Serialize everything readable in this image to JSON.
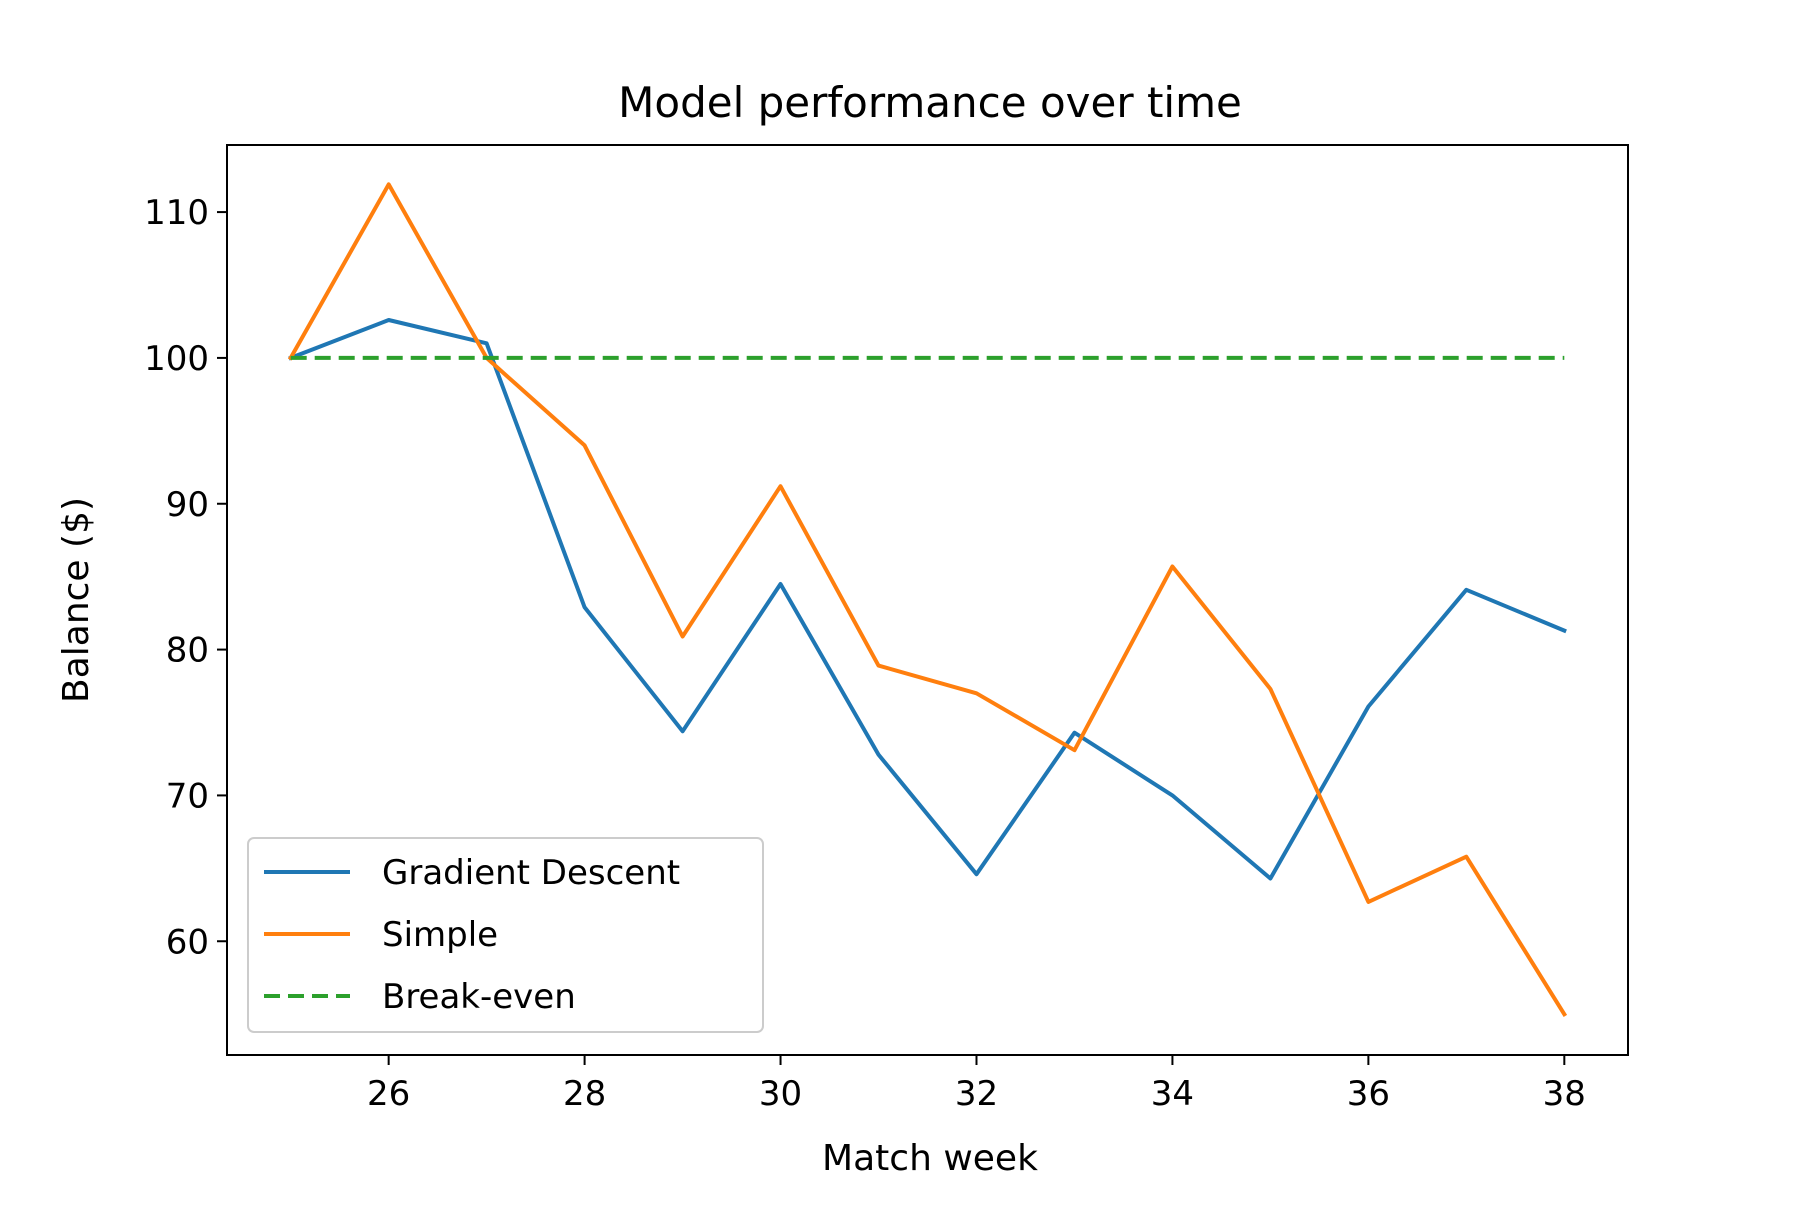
{
  "chart_data": {
    "type": "line",
    "title": "Model performance over time",
    "xlabel": "Match week",
    "ylabel": "Balance ($)",
    "xlim": [
      24.35,
      38.65
    ],
    "ylim": [
      52.2,
      114.6
    ],
    "xticks": [
      26,
      28,
      30,
      32,
      34,
      36,
      38
    ],
    "yticks": [
      60,
      70,
      80,
      90,
      100,
      110
    ],
    "grid": false,
    "legend_position": "lower-left",
    "x": [
      25,
      26,
      27,
      28,
      29,
      30,
      31,
      32,
      33,
      34,
      35,
      36,
      37,
      38
    ],
    "series": [
      {
        "name": "Gradient Descent",
        "color": "#1f77b4",
        "style": "solid",
        "values": [
          100.0,
          102.6,
          101.0,
          82.9,
          74.4,
          84.5,
          72.8,
          64.6,
          74.3,
          70.0,
          64.3,
          76.1,
          84.1,
          81.3
        ]
      },
      {
        "name": "Simple",
        "color": "#ff7f0e",
        "style": "solid",
        "values": [
          100.0,
          111.9,
          100.0,
          94.0,
          80.9,
          91.2,
          78.9,
          77.0,
          73.1,
          85.7,
          77.3,
          62.7,
          65.8,
          55.0
        ]
      },
      {
        "name": "Break-even",
        "color": "#2ca02c",
        "style": "dashed",
        "values": [
          100,
          100,
          100,
          100,
          100,
          100,
          100,
          100,
          100,
          100,
          100,
          100,
          100,
          100
        ]
      }
    ]
  }
}
